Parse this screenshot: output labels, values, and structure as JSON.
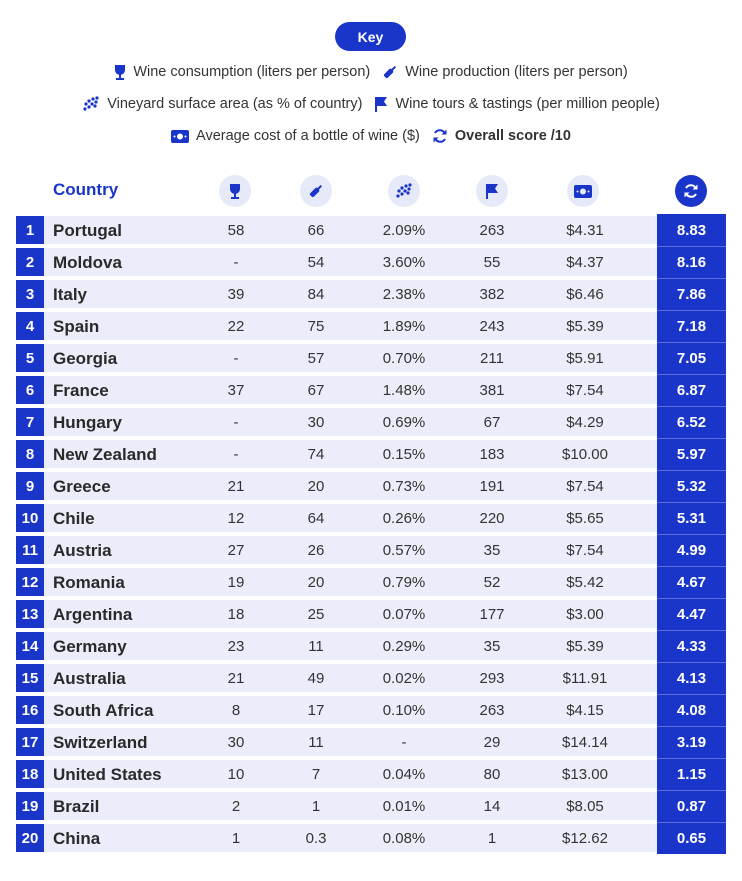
{
  "key": {
    "title": "Key",
    "legend": {
      "consumption": "Wine consumption (liters per person)",
      "production": "Wine production (liters per person)",
      "vineyard": "Vineyard surface area (as % of country)",
      "tours": "Wine tours & tastings (per million people)",
      "cost": "Average cost of a bottle of wine ($)",
      "score": "Overall score /10"
    }
  },
  "colors": {
    "accent": "#1a35c9",
    "stripe": "#ecedfb",
    "icon_bg": "#e6e9f8"
  },
  "chart_data": {
    "type": "table",
    "columns": [
      "Country",
      "Wine consumption (liters per person)",
      "Wine production (liters per person)",
      "Vineyard surface area (as % of country)",
      "Wine tours & tastings (per million people)",
      "Average cost of a bottle of wine ($)",
      "Overall score /10"
    ],
    "header_label": "Country",
    "rows": [
      {
        "rank": "1",
        "country": "Portugal",
        "consumption": "58",
        "production": "66",
        "vineyard": "2.09%",
        "tours": "263",
        "cost": "$4.31",
        "score": "8.83"
      },
      {
        "rank": "2",
        "country": "Moldova",
        "consumption": "-",
        "production": "54",
        "vineyard": "3.60%",
        "tours": "55",
        "cost": "$4.37",
        "score": "8.16"
      },
      {
        "rank": "3",
        "country": "Italy",
        "consumption": "39",
        "production": "84",
        "vineyard": "2.38%",
        "tours": "382",
        "cost": "$6.46",
        "score": "7.86"
      },
      {
        "rank": "4",
        "country": "Spain",
        "consumption": "22",
        "production": "75",
        "vineyard": "1.89%",
        "tours": "243",
        "cost": "$5.39",
        "score": "7.18"
      },
      {
        "rank": "5",
        "country": "Georgia",
        "consumption": "-",
        "production": "57",
        "vineyard": "0.70%",
        "tours": "211",
        "cost": "$5.91",
        "score": "7.05"
      },
      {
        "rank": "6",
        "country": "France",
        "consumption": "37",
        "production": "67",
        "vineyard": "1.48%",
        "tours": "381",
        "cost": "$7.54",
        "score": "6.87"
      },
      {
        "rank": "7",
        "country": "Hungary",
        "consumption": "-",
        "production": "30",
        "vineyard": "0.69%",
        "tours": "67",
        "cost": "$4.29",
        "score": "6.52"
      },
      {
        "rank": "8",
        "country": "New Zealand",
        "consumption": "-",
        "production": "74",
        "vineyard": "0.15%",
        "tours": "183",
        "cost": "$10.00",
        "score": "5.97"
      },
      {
        "rank": "9",
        "country": "Greece",
        "consumption": "21",
        "production": "20",
        "vineyard": "0.73%",
        "tours": "191",
        "cost": "$7.54",
        "score": "5.32"
      },
      {
        "rank": "10",
        "country": "Chile",
        "consumption": "12",
        "production": "64",
        "vineyard": "0.26%",
        "tours": "220",
        "cost": "$5.65",
        "score": "5.31"
      },
      {
        "rank": "11",
        "country": "Austria",
        "consumption": "27",
        "production": "26",
        "vineyard": "0.57%",
        "tours": "35",
        "cost": "$7.54",
        "score": "4.99"
      },
      {
        "rank": "12",
        "country": "Romania",
        "consumption": "19",
        "production": "20",
        "vineyard": "0.79%",
        "tours": "52",
        "cost": "$5.42",
        "score": "4.67"
      },
      {
        "rank": "13",
        "country": "Argentina",
        "consumption": "18",
        "production": "25",
        "vineyard": "0.07%",
        "tours": "177",
        "cost": "$3.00",
        "score": "4.47"
      },
      {
        "rank": "14",
        "country": "Germany",
        "consumption": "23",
        "production": "11",
        "vineyard": "0.29%",
        "tours": "35",
        "cost": "$5.39",
        "score": "4.33"
      },
      {
        "rank": "15",
        "country": "Australia",
        "consumption": "21",
        "production": "49",
        "vineyard": "0.02%",
        "tours": "293",
        "cost": "$11.91",
        "score": "4.13"
      },
      {
        "rank": "16",
        "country": "South Africa",
        "consumption": "8",
        "production": "17",
        "vineyard": "0.10%",
        "tours": "263",
        "cost": "$4.15",
        "score": "4.08"
      },
      {
        "rank": "17",
        "country": "Switzerland",
        "consumption": "30",
        "production": "11",
        "vineyard": "-",
        "tours": "29",
        "cost": "$14.14",
        "score": "3.19"
      },
      {
        "rank": "18",
        "country": "United States",
        "consumption": "10",
        "production": "7",
        "vineyard": "0.04%",
        "tours": "80",
        "cost": "$13.00",
        "score": "1.15"
      },
      {
        "rank": "19",
        "country": "Brazil",
        "consumption": "2",
        "production": "1",
        "vineyard": "0.01%",
        "tours": "14",
        "cost": "$8.05",
        "score": "0.87"
      },
      {
        "rank": "20",
        "country": "China",
        "consumption": "1",
        "production": "0.3",
        "vineyard": "0.08%",
        "tours": "1",
        "cost": "$12.62",
        "score": "0.65"
      }
    ]
  }
}
